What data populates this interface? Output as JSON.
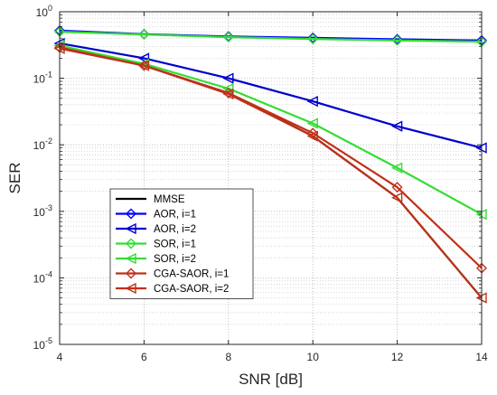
{
  "chart_data": {
    "type": "line",
    "xlabel": "SNR [dB]",
    "ylabel": "SER",
    "xlim": [
      4,
      14
    ],
    "ylim": [
      1e-05,
      1
    ],
    "yscale": "log",
    "grid": true,
    "minor_grid": true,
    "legend_position": "lower-left",
    "x_ticks": [
      4,
      6,
      8,
      10,
      12,
      14
    ],
    "y_ticks": [
      {
        "base": "10",
        "exp": "0",
        "value": 1
      },
      {
        "base": "10",
        "exp": "-1",
        "value": 0.1
      },
      {
        "base": "10",
        "exp": "-2",
        "value": 0.01
      },
      {
        "base": "10",
        "exp": "-3",
        "value": 0.001
      },
      {
        "base": "10",
        "exp": "-4",
        "value": 0.0001
      },
      {
        "base": "10",
        "exp": "-5",
        "value": 1e-05
      }
    ],
    "x": [
      4,
      6,
      8,
      10,
      12,
      14
    ],
    "series": [
      {
        "name": "MMSE",
        "color": "#000000",
        "marker": "none",
        "values": [
          0.29,
          0.155,
          0.06,
          0.0135,
          0.0016,
          5e-05
        ]
      },
      {
        "name": "AOR, i=1",
        "color": "#0000ff",
        "marker": "diamond",
        "values": [
          0.52,
          0.46,
          0.425,
          0.405,
          0.385,
          0.37
        ]
      },
      {
        "name": "AOR, i=2",
        "color": "#0000cd",
        "marker": "triangle-left",
        "values": [
          0.335,
          0.2,
          0.1,
          0.045,
          0.019,
          0.009
        ]
      },
      {
        "name": "SOR, i=1",
        "color": "#33dd33",
        "marker": "diamond",
        "values": [
          0.5,
          0.455,
          0.415,
          0.39,
          0.37,
          0.355
        ]
      },
      {
        "name": "SOR, i=2",
        "color": "#33dd33",
        "marker": "triangle-left",
        "values": [
          0.31,
          0.165,
          0.07,
          0.021,
          0.0045,
          0.0009
        ]
      },
      {
        "name": "CGA-SAOR, i=1",
        "color": "#c0311a",
        "marker": "diamond",
        "values": [
          0.29,
          0.155,
          0.06,
          0.015,
          0.0023,
          0.00014
        ]
      },
      {
        "name": "CGA-SAOR, i=2",
        "color": "#c0311a",
        "marker": "triangle-left",
        "values": [
          0.28,
          0.155,
          0.058,
          0.0135,
          0.0016,
          5e-05
        ]
      }
    ]
  }
}
